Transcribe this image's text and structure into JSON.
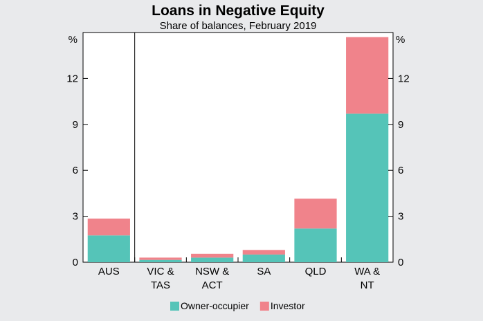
{
  "chart_data": {
    "type": "bar",
    "stacked": true,
    "title": "Loans in Negative Equity",
    "subtitle": "Share of balances, February 2019",
    "y_unit_left": "%",
    "y_unit_right": "%",
    "ylim": [
      0,
      15
    ],
    "yticks": [
      "0",
      "3",
      "6",
      "9",
      "12"
    ],
    "categories": [
      [
        "AUS"
      ],
      [
        "VIC &",
        "TAS"
      ],
      [
        "NSW &",
        "ACT"
      ],
      [
        "SA"
      ],
      [
        "QLD"
      ],
      [
        "WA &",
        "NT"
      ]
    ],
    "series": [
      {
        "name": "Owner-occupier",
        "color": "#55c4b8",
        "values": [
          1.75,
          0.15,
          0.3,
          0.5,
          2.2,
          9.7
        ]
      },
      {
        "name": "Investor",
        "color": "#f0838b",
        "values": [
          1.1,
          0.15,
          0.25,
          0.3,
          1.95,
          5.0
        ]
      }
    ],
    "separator_after_category": 0,
    "grid": false,
    "legend_position": "bottom-center"
  }
}
